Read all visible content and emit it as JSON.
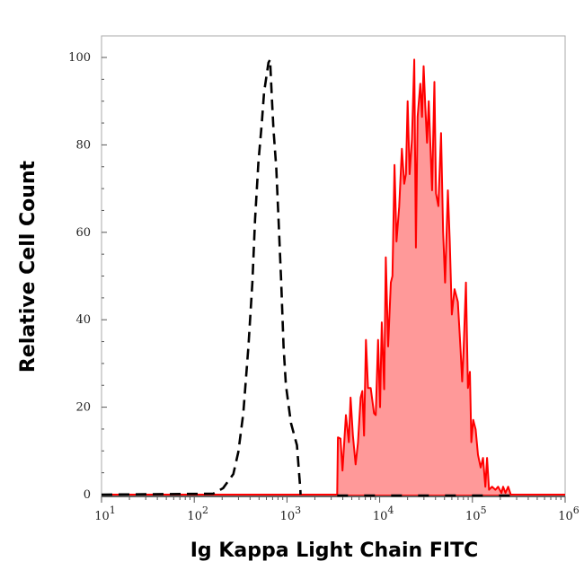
{
  "chart_data": {
    "type": "area",
    "title": "",
    "xlabel": "Ig Kappa Light Chain FITC",
    "ylabel": "Relative Cell Count",
    "xscale": "log",
    "xlim": [
      10,
      1000000
    ],
    "ylim": [
      0,
      100
    ],
    "grid": false,
    "legend": "none",
    "x_ticks": [
      {
        "base": "10",
        "exp": "1",
        "value": 10
      },
      {
        "base": "10",
        "exp": "2",
        "value": 100
      },
      {
        "base": "10",
        "exp": "3",
        "value": 1000
      },
      {
        "base": "10",
        "exp": "4",
        "value": 10000
      },
      {
        "base": "10",
        "exp": "5",
        "value": 100000
      },
      {
        "base": "10",
        "exp": "6",
        "value": 1000000
      }
    ],
    "y_ticks": [
      "0",
      "20",
      "40",
      "60",
      "80",
      "100"
    ],
    "series": [
      {
        "style": "dashed-line",
        "color": "#000000",
        "points": [
          [
            10,
            0
          ],
          [
            160,
            0.2
          ],
          [
            205,
            1.5
          ],
          [
            264,
            4.7
          ],
          [
            299,
            9.8
          ],
          [
            338,
            18.6
          ],
          [
            384,
            33.9
          ],
          [
            424,
            48.5
          ],
          [
            453,
            63
          ],
          [
            492,
            76
          ],
          [
            535,
            85
          ],
          [
            566,
            92
          ],
          [
            631,
            98.8
          ],
          [
            658,
            99.5
          ],
          [
            687,
            90.7
          ],
          [
            716,
            83.5
          ],
          [
            766,
            74.7
          ],
          [
            811,
            63
          ],
          [
            867,
            48.5
          ],
          [
            918,
            33.9
          ],
          [
            973,
            25.1
          ],
          [
            1104,
            16.4
          ],
          [
            1282,
            11.3
          ],
          [
            1393,
            1.1
          ],
          [
            1400,
            0
          ]
        ]
      },
      {
        "style": "filled",
        "color": "#ff0000",
        "fill": "#ff9999",
        "points": [
          [
            3483,
            0
          ],
          [
            3540,
            13.1
          ],
          [
            3784,
            12.8
          ],
          [
            3972,
            5.5
          ],
          [
            4325,
            18.2
          ],
          [
            4656,
            12.0
          ],
          [
            4853,
            22.2
          ],
          [
            5145,
            13.5
          ],
          [
            5495,
            6.9
          ],
          [
            5834,
            11.8
          ],
          [
            6237,
            22.2
          ],
          [
            6501,
            23.7
          ],
          [
            6776,
            13.5
          ],
          [
            7112,
            35.4
          ],
          [
            7482,
            24.4
          ],
          [
            7998,
            24.4
          ],
          [
            8690,
            18.6
          ],
          [
            9057,
            18.2
          ],
          [
            9616,
            35.4
          ],
          [
            10092,
            20.0
          ],
          [
            10520,
            39.4
          ],
          [
            11170,
            24.1
          ],
          [
            11640,
            54.3
          ],
          [
            12330,
            33.9
          ],
          [
            13180,
            48.5
          ],
          [
            13740,
            50.0
          ],
          [
            14450,
            75.4
          ],
          [
            15180,
            57.9
          ],
          [
            16220,
            65.9
          ],
          [
            17340,
            79.1
          ],
          [
            18400,
            71.1
          ],
          [
            19190,
            73.3
          ],
          [
            20000,
            90.0
          ],
          [
            21040,
            73.3
          ],
          [
            22280,
            81.3
          ],
          [
            23610,
            99.5
          ],
          [
            24600,
            56.5
          ],
          [
            25650,
            86.4
          ],
          [
            27420,
            94.0
          ],
          [
            28580,
            86.4
          ],
          [
            29790,
            98.0
          ],
          [
            31050,
            88.6
          ],
          [
            32430,
            80.5
          ],
          [
            33810,
            90.0
          ],
          [
            36730,
            69.6
          ],
          [
            38900,
            94.4
          ],
          [
            40550,
            68.9
          ],
          [
            42950,
            66.0
          ],
          [
            45920,
            82.7
          ],
          [
            48310,
            60.1
          ],
          [
            50800,
            48.5
          ],
          [
            54330,
            69.6
          ],
          [
            57020,
            57.9
          ],
          [
            59980,
            41.2
          ],
          [
            64120,
            47.0
          ],
          [
            69660,
            44.1
          ],
          [
            74470,
            33.2
          ],
          [
            77620,
            25.9
          ],
          [
            80350,
            33.2
          ],
          [
            85110,
            48.5
          ],
          [
            89540,
            24.4
          ],
          [
            93970,
            28.1
          ],
          [
            97280,
            12.0
          ],
          [
            102100,
            17.1
          ],
          [
            108400,
            14.9
          ],
          [
            114800,
            9.1
          ],
          [
            122700,
            6.2
          ],
          [
            130000,
            8.4
          ],
          [
            138000,
            1.8
          ],
          [
            143900,
            8.4
          ],
          [
            151000,
            1.1
          ],
          [
            162900,
            1.8
          ],
          [
            177000,
            1.1
          ],
          [
            189200,
            1.8
          ],
          [
            205600,
            0.4
          ],
          [
            214300,
            1.8
          ],
          [
            227500,
            0.4
          ],
          [
            242900,
            1.8
          ],
          [
            259400,
            0
          ]
        ]
      }
    ]
  }
}
